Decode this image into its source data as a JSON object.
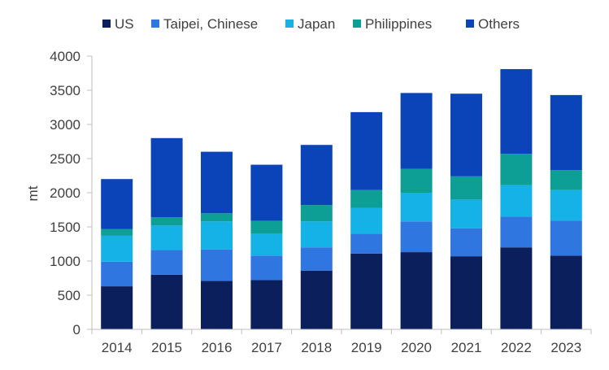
{
  "chart_data": {
    "type": "bar",
    "stacked": true,
    "categories": [
      "2014",
      "2015",
      "2016",
      "2017",
      "2018",
      "2019",
      "2020",
      "2021",
      "2022",
      "2023"
    ],
    "series": [
      {
        "name": "US",
        "color": "#0b1f5c",
        "values": [
          630,
          800,
          710,
          720,
          860,
          1110,
          1130,
          1070,
          1200,
          1080
        ]
      },
      {
        "name": "Taipei, Chinese",
        "color": "#2f76e0",
        "values": [
          360,
          360,
          460,
          360,
          340,
          290,
          450,
          410,
          450,
          510
        ]
      },
      {
        "name": "Japan",
        "color": "#14b2e6",
        "values": [
          380,
          360,
          410,
          320,
          380,
          380,
          420,
          420,
          460,
          450
        ]
      },
      {
        "name": "Philippines",
        "color": "#0d9e96",
        "values": [
          100,
          120,
          120,
          190,
          240,
          260,
          350,
          340,
          460,
          290
        ]
      },
      {
        "name": "Others",
        "color": "#0a44b8",
        "values": [
          730,
          1160,
          900,
          820,
          880,
          1140,
          1110,
          1210,
          1240,
          1100
        ]
      }
    ],
    "xlabel": "",
    "ylabel": "mt",
    "ylim": [
      0,
      4000
    ],
    "yticks": [
      0,
      500,
      1000,
      1500,
      2000,
      2500,
      3000,
      3500,
      4000
    ],
    "grid": false,
    "legend": "top"
  }
}
